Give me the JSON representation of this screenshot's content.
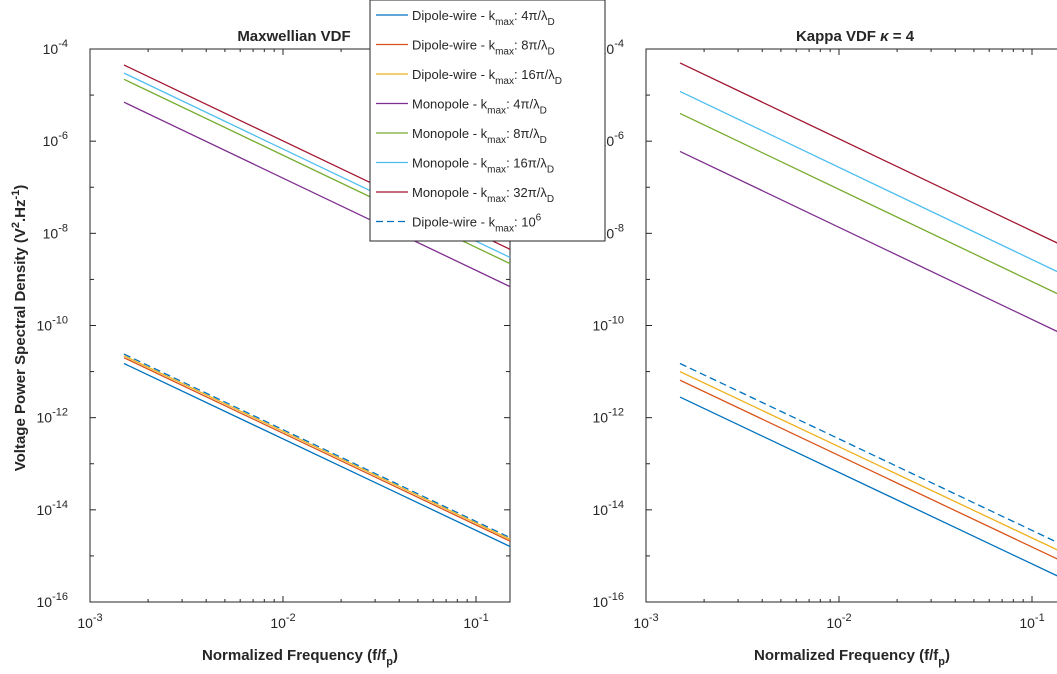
{
  "chart_data": [
    {
      "type": "line",
      "title": "Maxwellian VDF",
      "xlabel": "Normalized Frequency (f/f_p)",
      "ylabel": "Voltage Power Spectral Density (V^2.Hz^-1)",
      "xscale": "log",
      "yscale": "log",
      "xlim": [
        0.001,
        0.15
      ],
      "ylim": [
        1e-16,
        0.0001
      ],
      "xticks": [
        {
          "value": 0.001,
          "base": "10",
          "exp": "-3"
        },
        {
          "value": 0.01,
          "base": "10",
          "exp": "-2"
        },
        {
          "value": 0.1,
          "base": "10",
          "exp": "-1"
        }
      ],
      "yticks": [
        {
          "value": 1e-16,
          "base": "10",
          "exp": "-16"
        },
        {
          "value": 1e-14,
          "base": "10",
          "exp": "-14"
        },
        {
          "value": 1e-12,
          "base": "10",
          "exp": "-12"
        },
        {
          "value": 1e-10,
          "base": "10",
          "exp": "-10"
        },
        {
          "value": 1e-08,
          "base": "10",
          "exp": "-8"
        },
        {
          "value": 1e-06,
          "base": "10",
          "exp": "-6"
        },
        {
          "value": 0.0001,
          "base": "10",
          "exp": "-4"
        }
      ],
      "grid": false,
      "legend": "top-right",
      "series": [
        {
          "name": "Dipole-wire - k_max: 4π/λ_D",
          "color": "#0072BD",
          "dash": "solid",
          "x": [
            0.0015,
            0.15
          ],
          "y": [
            1.5e-11,
            1.6e-15
          ]
        },
        {
          "name": "Dipole-wire - k_max: 8π/λ_D",
          "color": "#D95319",
          "dash": "solid",
          "x": [
            0.0015,
            0.15
          ],
          "y": [
            2e-11,
            2.1e-15
          ]
        },
        {
          "name": "Dipole-wire - k_max: 16π/λ_D",
          "color": "#EDB120",
          "dash": "solid",
          "x": [
            0.0015,
            0.15
          ],
          "y": [
            2.2e-11,
            2.3e-15
          ]
        },
        {
          "name": "Monopole - k_max: 4π/λ_D",
          "color": "#7E2F8E",
          "dash": "solid",
          "x": [
            0.0015,
            0.15
          ],
          "y": [
            7e-06,
            7e-10
          ]
        },
        {
          "name": "Monopole - k_max: 8π/λ_D",
          "color": "#77AC30",
          "dash": "solid",
          "x": [
            0.0015,
            0.15
          ],
          "y": [
            2.2e-05,
            2.2e-09
          ]
        },
        {
          "name": "Monopole - k_max: 16π/λ_D",
          "color": "#4DBEEE",
          "dash": "solid",
          "x": [
            0.0015,
            0.15
          ],
          "y": [
            3e-05,
            3e-09
          ]
        },
        {
          "name": "Monopole - k_max: 32π/λ_D",
          "color": "#A2142F",
          "dash": "solid",
          "x": [
            0.0015,
            0.15
          ],
          "y": [
            4.5e-05,
            4.5e-09
          ]
        },
        {
          "name": "Dipole-wire - k_max: 10^6",
          "color": "#0072BD",
          "dash": "dashed",
          "x": [
            0.0015,
            0.15
          ],
          "y": [
            2.4e-11,
            2.5e-15
          ]
        }
      ]
    },
    {
      "type": "line",
      "title": "Kappa VDF κ = 4",
      "xlabel": "Normalized Frequency (f/f_p)",
      "ylabel": "",
      "xscale": "log",
      "yscale": "log",
      "xlim": [
        0.001,
        0.15
      ],
      "ylim": [
        1e-16,
        0.0001
      ],
      "xticks": [
        {
          "value": 0.001,
          "base": "10",
          "exp": "-3"
        },
        {
          "value": 0.01,
          "base": "10",
          "exp": "-2"
        },
        {
          "value": 0.1,
          "base": "10",
          "exp": "-1"
        }
      ],
      "yticks": [
        {
          "value": 1e-16,
          "base": "10",
          "exp": "-16"
        },
        {
          "value": 1e-14,
          "base": "10",
          "exp": "-14"
        },
        {
          "value": 1e-12,
          "base": "10",
          "exp": "-12"
        },
        {
          "value": 1e-10,
          "base": "10",
          "exp": "-10"
        },
        {
          "value": 1e-08,
          "base": "10",
          "exp": "-8"
        },
        {
          "value": 1e-06,
          "base": "10",
          "exp": "-6"
        },
        {
          "value": 0.0001,
          "base": "10",
          "exp": "-4"
        }
      ],
      "grid": false,
      "series": [
        {
          "name": "Dipole-wire - k_max: 4π/λ_D",
          "color": "#0072BD",
          "dash": "solid",
          "x": [
            0.0015,
            0.15
          ],
          "y": [
            2.8e-12,
            3e-16
          ]
        },
        {
          "name": "Dipole-wire - k_max: 8π/λ_D",
          "color": "#D95319",
          "dash": "solid",
          "x": [
            0.0015,
            0.15
          ],
          "y": [
            6.5e-12,
            7e-16
          ]
        },
        {
          "name": "Dipole-wire - k_max: 16π/λ_D",
          "color": "#EDB120",
          "dash": "solid",
          "x": [
            0.0015,
            0.15
          ],
          "y": [
            1e-11,
            1.1e-15
          ]
        },
        {
          "name": "Monopole - k_max: 4π/λ_D",
          "color": "#7E2F8E",
          "dash": "solid",
          "x": [
            0.0015,
            0.15
          ],
          "y": [
            6e-07,
            6e-11
          ]
        },
        {
          "name": "Monopole - k_max: 8π/λ_D",
          "color": "#77AC30",
          "dash": "solid",
          "x": [
            0.0015,
            0.15
          ],
          "y": [
            4e-06,
            4e-10
          ]
        },
        {
          "name": "Monopole - k_max: 16π/λ_D",
          "color": "#4DBEEE",
          "dash": "solid",
          "x": [
            0.0015,
            0.15
          ],
          "y": [
            1.2e-05,
            1.2e-09
          ]
        },
        {
          "name": "Monopole - k_max: 32π/λ_D",
          "color": "#A2142F",
          "dash": "solid",
          "x": [
            0.0015,
            0.15
          ],
          "y": [
            5e-05,
            5e-09
          ]
        },
        {
          "name": "Dipole-wire - k_max: 10^6",
          "color": "#0072BD",
          "dash": "dashed",
          "x": [
            0.0015,
            0.15
          ],
          "y": [
            1.5e-11,
            1.6e-15
          ]
        }
      ]
    }
  ],
  "legend_entries": [
    {
      "prefix": "Dipole-wire - k",
      "sub": "max",
      "suffix": ": 4π/λ",
      "tail_sub": "D",
      "tail_sup": "",
      "color": "#0072BD",
      "dash": "solid"
    },
    {
      "prefix": "Dipole-wire - k",
      "sub": "max",
      "suffix": ": 8π/λ",
      "tail_sub": "D",
      "tail_sup": "",
      "color": "#D95319",
      "dash": "solid"
    },
    {
      "prefix": "Dipole-wire - k",
      "sub": "max",
      "suffix": ": 16π/λ",
      "tail_sub": "D",
      "tail_sup": "",
      "color": "#EDB120",
      "dash": "solid"
    },
    {
      "prefix": "Monopole  - k",
      "sub": "max",
      "suffix": ": 4π/λ",
      "tail_sub": "D",
      "tail_sup": "",
      "color": "#7E2F8E",
      "dash": "solid"
    },
    {
      "prefix": "Monopole  - k",
      "sub": "max",
      "suffix": ": 8π/λ",
      "tail_sub": "D",
      "tail_sup": "",
      "color": "#77AC30",
      "dash": "solid"
    },
    {
      "prefix": "Monopole  - k",
      "sub": "max",
      "suffix": ": 16π/λ",
      "tail_sub": "D",
      "tail_sup": "",
      "color": "#4DBEEE",
      "dash": "solid"
    },
    {
      "prefix": "Monopole  - k",
      "sub": "max",
      "suffix": ": 32π/λ",
      "tail_sub": "D",
      "tail_sup": "",
      "color": "#A2142F",
      "dash": "solid"
    },
    {
      "prefix": "Dipole-wire  - k",
      "sub": "max",
      "suffix": ": 10",
      "tail_sub": "",
      "tail_sup": "6",
      "color": "#0072BD",
      "dash": "dashed"
    }
  ],
  "labels": {
    "ylabel_main": "Voltage Power Spectral Density (V",
    "ylabel_sup1": "2",
    "ylabel_mid": ".Hz",
    "ylabel_sup2": "-1",
    "ylabel_end": ")",
    "xlabel_main": "Normalized Frequency (f/f",
    "xlabel_sub": "p",
    "xlabel_end": ")",
    "title_left": "Maxwellian VDF",
    "title_right_main": "Kappa VDF ",
    "title_right_kappa": "κ",
    "title_right_end": " = 4"
  }
}
